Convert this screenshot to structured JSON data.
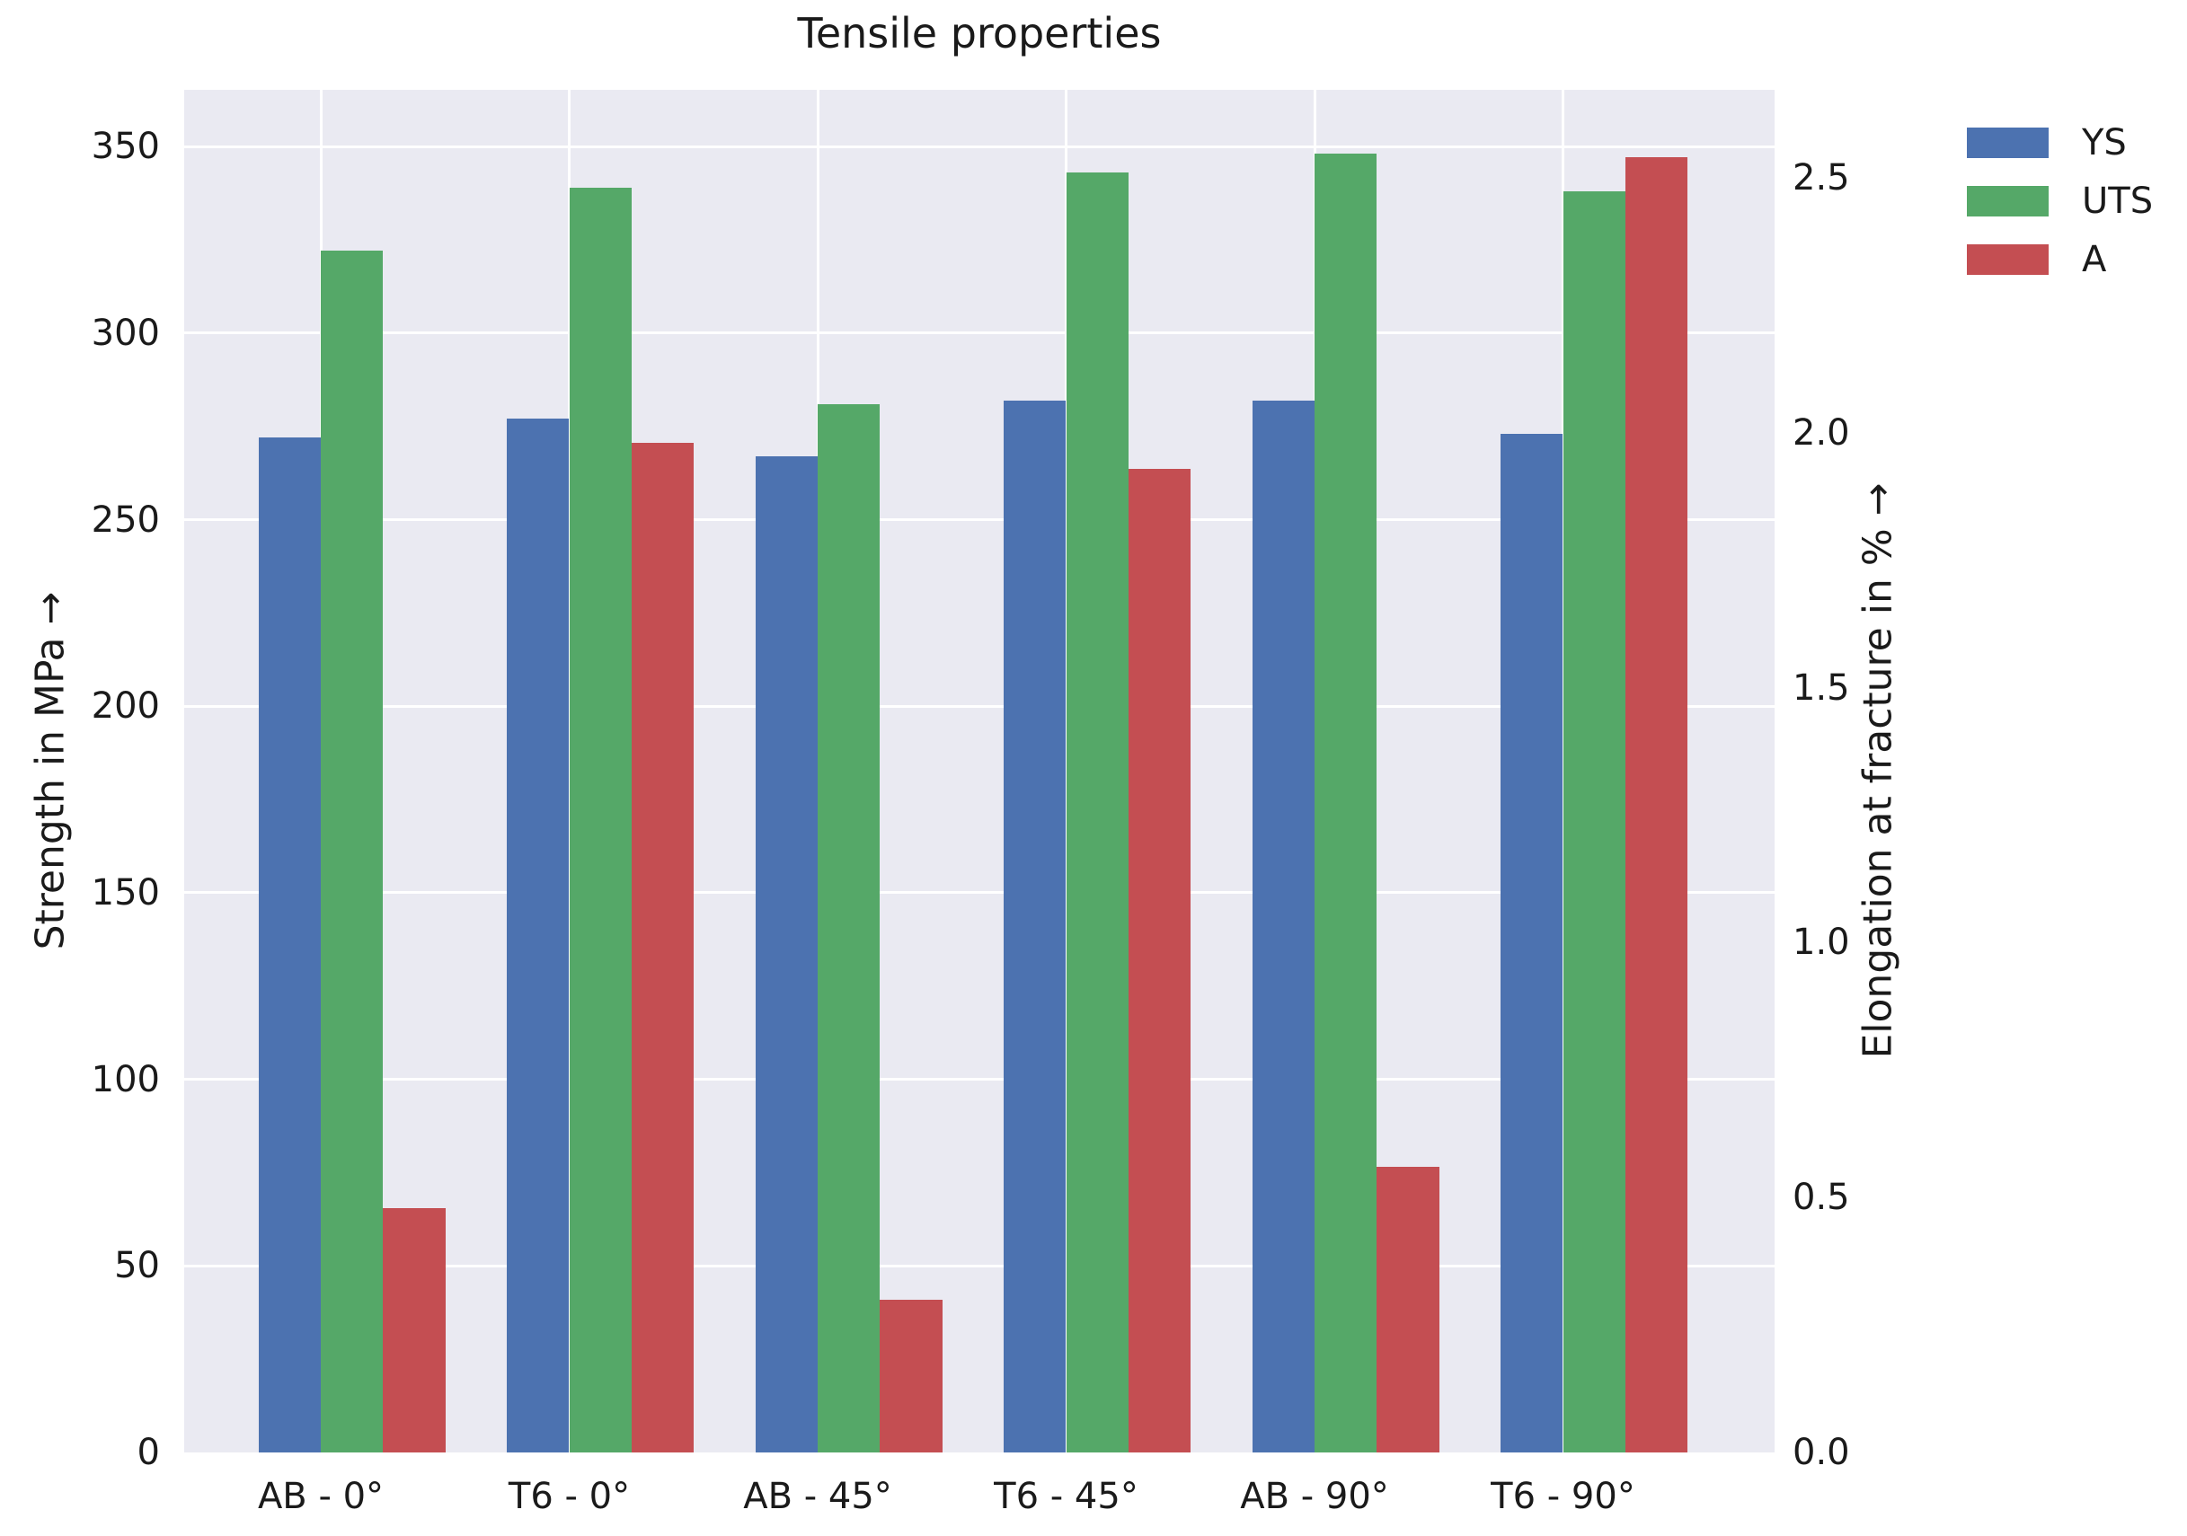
{
  "title": "Tensile properties",
  "chart_data": {
    "type": "bar",
    "title": "Tensile properties",
    "categories": [
      "AB - 0°",
      "T6 - 0°",
      "AB - 45°",
      "T6 - 45°",
      "AB - 90°",
      "T6 - 90°"
    ],
    "series": [
      {
        "name": "YS",
        "axis": "left",
        "color": "#4C72B0",
        "values": [
          272,
          277,
          267,
          282,
          282,
          273
        ]
      },
      {
        "name": "UTS",
        "axis": "left",
        "color": "#55A868",
        "values": [
          322,
          339,
          281,
          343,
          348,
          338
        ]
      },
      {
        "name": "A",
        "axis": "right",
        "color": "#C44E52",
        "values": [
          0.48,
          1.98,
          0.3,
          1.93,
          0.56,
          2.54
        ]
      }
    ],
    "left_axis": {
      "label": "Strength in MPa →",
      "tick_values": [
        0,
        50,
        100,
        150,
        200,
        250,
        300,
        350
      ],
      "tick_labels": [
        "0",
        "50",
        "100",
        "150",
        "200",
        "250",
        "300",
        "350"
      ],
      "range": [
        0,
        365.2
      ]
    },
    "right_axis": {
      "label": "Elongation at fracture in % →",
      "tick_values": [
        0,
        0.5,
        1.0,
        1.5,
        2.0,
        2.5
      ],
      "tick_labels": [
        "0.0",
        "0.5",
        "1.0",
        "1.5",
        "2.0",
        "2.5"
      ],
      "range": [
        0,
        2.673
      ]
    },
    "legend": {
      "position": "upper-right-outside",
      "entries": [
        "YS",
        "UTS",
        "A"
      ]
    },
    "plot_background": "#EAEAF2",
    "gridline_color": "#FFFFFF",
    "grid": true
  }
}
